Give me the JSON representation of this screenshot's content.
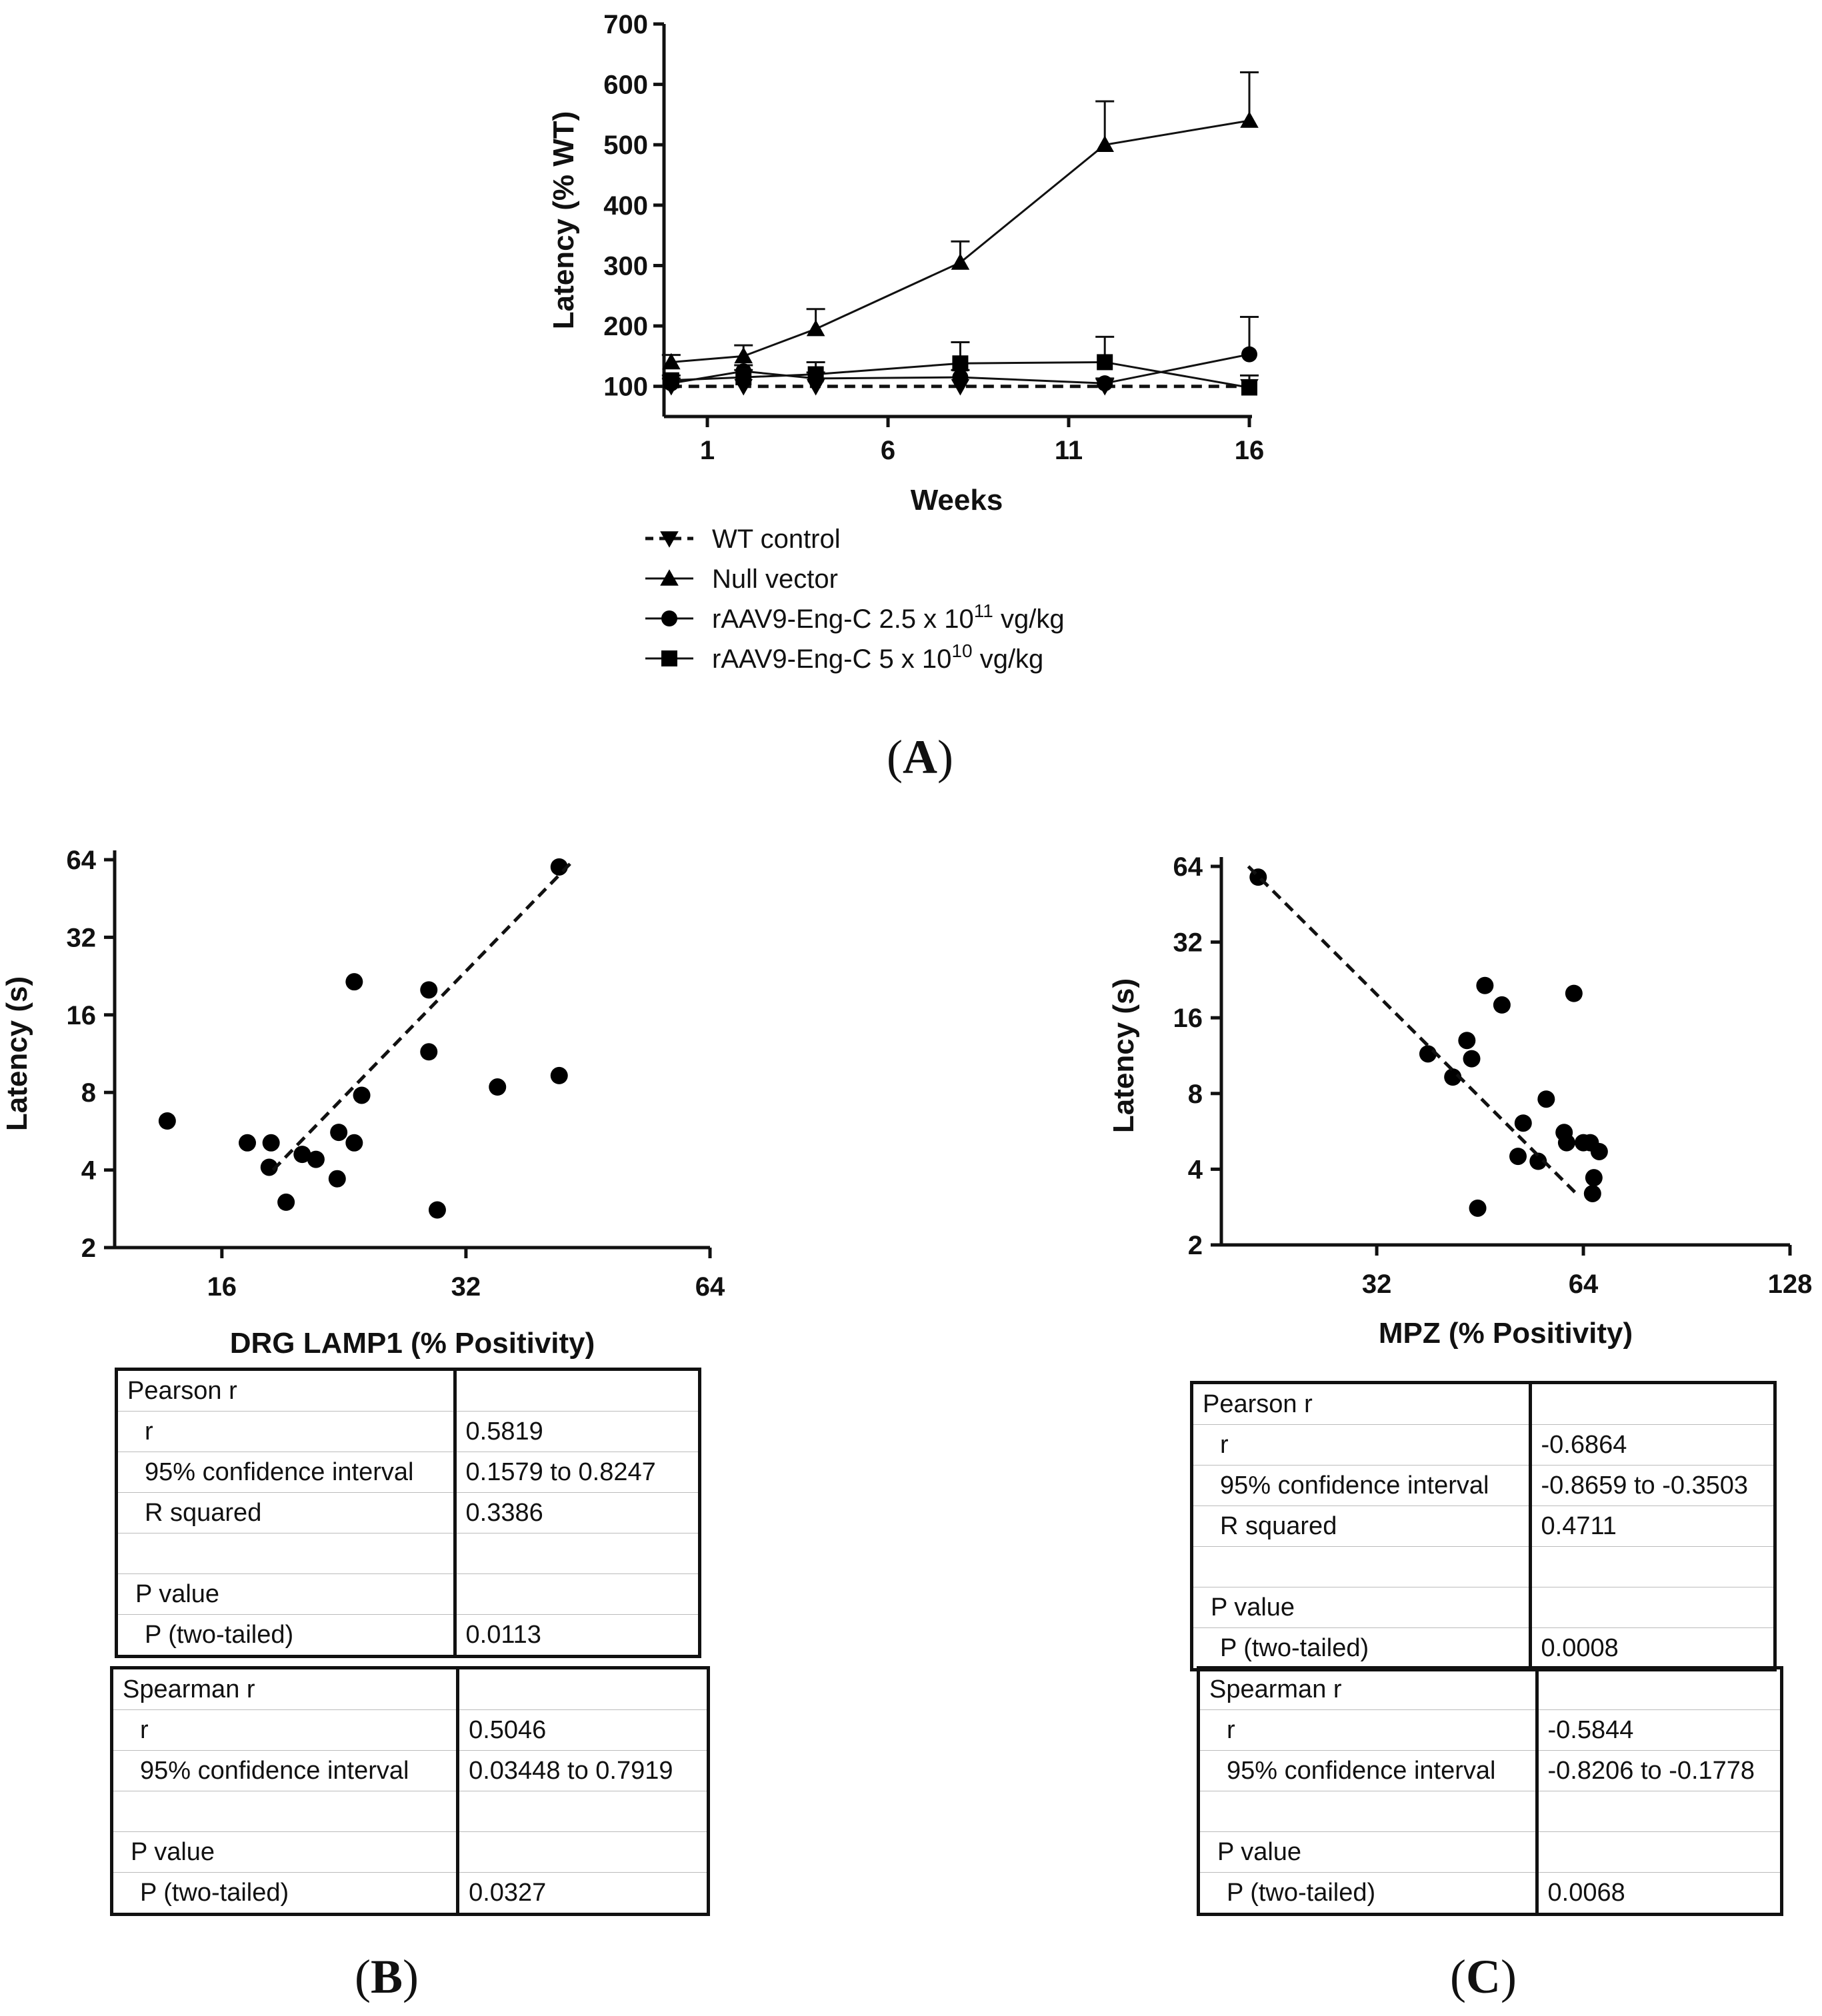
{
  "chart_data": [
    {
      "panel": "A",
      "type": "line",
      "panel_label": "A",
      "xlabel": "Weeks",
      "ylabel": "Latency (% WT)",
      "x_ticks": [
        1,
        6,
        11,
        16
      ],
      "y_ticks": [
        100,
        200,
        300,
        400,
        500,
        600,
        700
      ],
      "xlim": [
        -0.2,
        16
      ],
      "ylim": [
        50,
        700
      ],
      "series": [
        {
          "name": "WT control",
          "marker": "triangle-down",
          "dashed": true,
          "x": [
            0,
            2,
            4,
            8,
            12,
            16
          ],
          "y": [
            100,
            100,
            100,
            100,
            100,
            100
          ],
          "err": [
            0,
            0,
            0,
            0,
            0,
            0
          ]
        },
        {
          "name": "Null vector",
          "marker": "triangle-up",
          "dashed": false,
          "x": [
            0,
            2,
            4,
            8,
            12,
            16
          ],
          "y": [
            140,
            150,
            195,
            305,
            500,
            540
          ],
          "err": [
            12,
            18,
            33,
            35,
            72,
            80
          ]
        },
        {
          "name": "rAAV9-Eng-C 2.5 x 10^11 vg/kg",
          "marker": "circle",
          "dashed": false,
          "x": [
            0,
            2,
            4,
            8,
            12,
            16
          ],
          "y": [
            105,
            125,
            113,
            115,
            105,
            153
          ],
          "err": [
            8,
            10,
            10,
            12,
            8,
            62
          ]
        },
        {
          "name": "rAAV9-Eng-C 5 x 10^10 vg/kg",
          "marker": "square",
          "dashed": false,
          "x": [
            0,
            2,
            4,
            8,
            12,
            16
          ],
          "y": [
            110,
            115,
            120,
            138,
            140,
            98
          ],
          "err": [
            8,
            12,
            20,
            35,
            42,
            20
          ]
        }
      ],
      "legend": [
        {
          "key": "wt",
          "marker": "triangle-down",
          "dashed": true,
          "text": "WT control"
        },
        {
          "key": "null",
          "marker": "triangle-up",
          "dashed": false,
          "text": "Null vector"
        },
        {
          "key": "high",
          "marker": "circle",
          "dashed": false,
          "text": "rAAV9-Eng-C 2.5 x 10",
          "sup": "11",
          "suffix": " vg/kg"
        },
        {
          "key": "low",
          "marker": "square",
          "dashed": false,
          "text": "rAAV9-Eng-C 5 x 10",
          "sup": "10",
          "suffix": " vg/kg"
        }
      ]
    },
    {
      "panel": "B",
      "type": "scatter",
      "panel_label": "B",
      "xlabel": "DRG LAMP1 (% Positivity)",
      "ylabel": "Latency (s)",
      "x_scale": "log2",
      "y_scale": "log2",
      "x_ticks": [
        16,
        32,
        64
      ],
      "y_ticks": [
        2,
        4,
        8,
        16,
        32,
        64
      ],
      "xlim": [
        11.8,
        64
      ],
      "ylim": [
        2,
        64
      ],
      "points": [
        [
          13.7,
          6.2
        ],
        [
          17.2,
          5.1
        ],
        [
          18.4,
          5.1
        ],
        [
          18.3,
          4.1
        ],
        [
          19.2,
          3.0
        ],
        [
          20.1,
          4.6
        ],
        [
          20.9,
          4.4
        ],
        [
          22.2,
          3.7
        ],
        [
          22.3,
          5.6
        ],
        [
          23.3,
          5.1
        ],
        [
          23.8,
          7.8
        ],
        [
          23.3,
          21.5
        ],
        [
          28.8,
          20.0
        ],
        [
          28.8,
          11.5
        ],
        [
          29.5,
          2.8
        ],
        [
          35.0,
          8.4
        ],
        [
          41.7,
          9.3
        ],
        [
          41.7,
          60.0
        ]
      ],
      "fit_line": {
        "x": [
          18.5,
          43.5
        ],
        "y": [
          4.0,
          64.0
        ]
      }
    },
    {
      "panel": "C",
      "type": "scatter",
      "panel_label": "C",
      "xlabel": "MPZ (% Positivity)",
      "ylabel": "Latency (s)",
      "x_scale": "log2",
      "y_scale": "log2",
      "x_ticks": [
        32,
        64,
        128
      ],
      "y_ticks": [
        2,
        4,
        8,
        16,
        32,
        64
      ],
      "xlim": [
        19,
        128
      ],
      "ylim": [
        2,
        64
      ],
      "points": [
        [
          21.5,
          58.0
        ],
        [
          38.0,
          11.5
        ],
        [
          41.3,
          9.3
        ],
        [
          43.3,
          13.0
        ],
        [
          44.0,
          11.0
        ],
        [
          46.0,
          21.5
        ],
        [
          48.7,
          18.0
        ],
        [
          44.9,
          2.8
        ],
        [
          51.4,
          4.5
        ],
        [
          52.3,
          6.1
        ],
        [
          55.0,
          4.3
        ],
        [
          56.5,
          7.6
        ],
        [
          60.0,
          5.6
        ],
        [
          60.5,
          5.1
        ],
        [
          64.0,
          5.1
        ],
        [
          65.5,
          5.1
        ],
        [
          62.0,
          20.0
        ],
        [
          67.5,
          4.7
        ],
        [
          66.3,
          3.7
        ],
        [
          66.0,
          3.2
        ]
      ],
      "fit_line": {
        "x": [
          20.8,
          62.5
        ],
        "y": [
          64.0,
          3.2
        ]
      }
    }
  ],
  "stats_tables": {
    "B_pearson": [
      {
        "label": "Pearson r",
        "value": "",
        "indent": 0
      },
      {
        "label": "r",
        "value": "0.5819",
        "indent": 2
      },
      {
        "label": "95% confidence interval",
        "value": "0.1579 to 0.8247",
        "indent": 2
      },
      {
        "label": "R squared",
        "value": "0.3386",
        "indent": 2
      },
      {
        "label": "",
        "value": "",
        "indent": 0
      },
      {
        "label": "P value",
        "value": "",
        "indent": 1
      },
      {
        "label": "P (two-tailed)",
        "value": "0.0113",
        "indent": 2
      }
    ],
    "B_spearman": [
      {
        "label": "Spearman r",
        "value": "",
        "indent": 0
      },
      {
        "label": "r",
        "value": "0.5046",
        "indent": 2
      },
      {
        "label": "95% confidence interval",
        "value": "0.03448 to 0.7919",
        "indent": 2
      },
      {
        "label": "",
        "value": "",
        "indent": 0
      },
      {
        "label": "P value",
        "value": "",
        "indent": 1
      },
      {
        "label": "P (two-tailed)",
        "value": "0.0327",
        "indent": 2
      }
    ],
    "C_pearson": [
      {
        "label": "Pearson r",
        "value": "",
        "indent": 0
      },
      {
        "label": "r",
        "value": "-0.6864",
        "indent": 2
      },
      {
        "label": "95% confidence interval",
        "value": "-0.8659 to -0.3503",
        "indent": 2
      },
      {
        "label": "R squared",
        "value": "0.4711",
        "indent": 2
      },
      {
        "label": "",
        "value": "",
        "indent": 0
      },
      {
        "label": "P value",
        "value": "",
        "indent": 1
      },
      {
        "label": "P (two-tailed)",
        "value": "0.0008",
        "indent": 2
      }
    ],
    "C_spearman": [
      {
        "label": "Spearman r",
        "value": "",
        "indent": 0
      },
      {
        "label": "r",
        "value": "-0.5844",
        "indent": 2
      },
      {
        "label": "95% confidence interval",
        "value": "-0.8206 to -0.1778",
        "indent": 2
      },
      {
        "label": "",
        "value": "",
        "indent": 0
      },
      {
        "label": "P value",
        "value": "",
        "indent": 1
      },
      {
        "label": "P (two-tailed)",
        "value": "0.0068",
        "indent": 2
      }
    ]
  }
}
